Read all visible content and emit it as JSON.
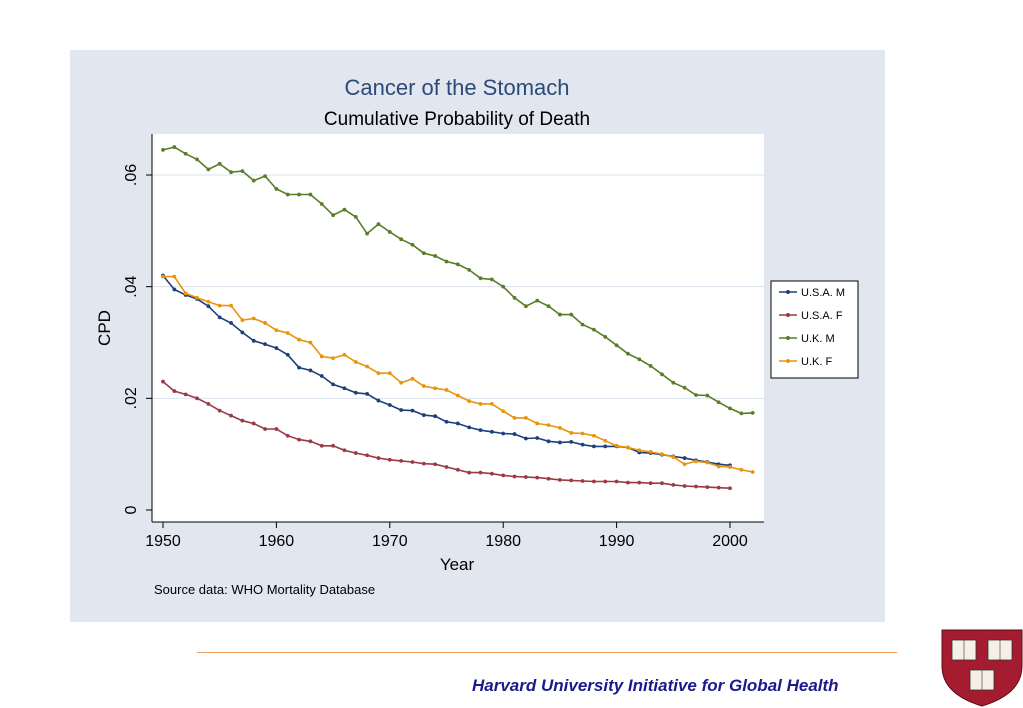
{
  "chart_data": {
    "type": "line",
    "title": "Cancer of the Stomach",
    "subtitle": "Cumulative Probability of Death",
    "xlabel": "Year",
    "ylabel": "CPD",
    "xlim": [
      1950,
      2002
    ],
    "ylim": [
      0,
      0.065
    ],
    "xticks": [
      1950,
      1960,
      1970,
      1980,
      1990,
      2000
    ],
    "xtick_labels": [
      "1950",
      "1960",
      "1970",
      "1980",
      "1990",
      "2000"
    ],
    "yticks": [
      0,
      0.02,
      0.04,
      0.06
    ],
    "ytick_labels": [
      "0",
      ".02",
      ".04",
      ".06"
    ],
    "grid": true,
    "legend_position": "right",
    "note": "Source data: WHO Mortality Database",
    "series": [
      {
        "name": "U.S.A. M",
        "color": "#1f3f7a",
        "x": [
          1950,
          1951,
          1952,
          1953,
          1954,
          1955,
          1956,
          1957,
          1958,
          1959,
          1960,
          1961,
          1962,
          1963,
          1964,
          1965,
          1966,
          1967,
          1968,
          1969,
          1970,
          1971,
          1972,
          1973,
          1974,
          1975,
          1976,
          1977,
          1978,
          1979,
          1980,
          1981,
          1982,
          1983,
          1984,
          1985,
          1986,
          1987,
          1988,
          1989,
          1990,
          1991,
          1992,
          1993,
          1994,
          1995,
          1996,
          1997,
          1998,
          1999,
          2000
        ],
        "y": [
          0.042,
          0.0395,
          0.0385,
          0.0378,
          0.0365,
          0.0345,
          0.0335,
          0.0318,
          0.0303,
          0.0297,
          0.029,
          0.0278,
          0.0255,
          0.025,
          0.024,
          0.0225,
          0.0218,
          0.021,
          0.0208,
          0.0196,
          0.0188,
          0.0179,
          0.0178,
          0.017,
          0.0168,
          0.0158,
          0.0155,
          0.0148,
          0.0143,
          0.014,
          0.0137,
          0.0136,
          0.0128,
          0.0129,
          0.0123,
          0.0121,
          0.0122,
          0.0117,
          0.0114,
          0.0114,
          0.0114,
          0.0112,
          0.0103,
          0.0102,
          0.0099,
          0.0096,
          0.0093,
          0.0089,
          0.0086,
          0.0082,
          0.008
        ]
      },
      {
        "name": "U.S.A. F",
        "color": "#9b3a46",
        "x": [
          1950,
          1951,
          1952,
          1953,
          1954,
          1955,
          1956,
          1957,
          1958,
          1959,
          1960,
          1961,
          1962,
          1963,
          1964,
          1965,
          1966,
          1967,
          1968,
          1969,
          1970,
          1971,
          1972,
          1973,
          1974,
          1975,
          1976,
          1977,
          1978,
          1979,
          1980,
          1981,
          1982,
          1983,
          1984,
          1985,
          1986,
          1987,
          1988,
          1989,
          1990,
          1991,
          1992,
          1993,
          1994,
          1995,
          1996,
          1997,
          1998,
          1999,
          2000
        ],
        "y": [
          0.023,
          0.0213,
          0.0207,
          0.02,
          0.019,
          0.0178,
          0.0169,
          0.016,
          0.0155,
          0.0145,
          0.0145,
          0.0133,
          0.0126,
          0.0123,
          0.0115,
          0.0115,
          0.0107,
          0.0102,
          0.0098,
          0.0093,
          0.009,
          0.0088,
          0.0086,
          0.0083,
          0.0082,
          0.0077,
          0.0072,
          0.0067,
          0.0067,
          0.0065,
          0.0062,
          0.006,
          0.0059,
          0.0058,
          0.0056,
          0.0054,
          0.0053,
          0.0052,
          0.0051,
          0.0051,
          0.0051,
          0.0049,
          0.0049,
          0.0048,
          0.0048,
          0.0045,
          0.0043,
          0.0042,
          0.0041,
          0.004,
          0.0039
        ]
      },
      {
        "name": "U.K. M",
        "color": "#5a7d2a",
        "x": [
          1950,
          1951,
          1952,
          1953,
          1954,
          1955,
          1956,
          1957,
          1958,
          1959,
          1960,
          1961,
          1962,
          1963,
          1964,
          1965,
          1966,
          1967,
          1968,
          1969,
          1970,
          1971,
          1972,
          1973,
          1974,
          1975,
          1976,
          1977,
          1978,
          1979,
          1980,
          1981,
          1982,
          1983,
          1984,
          1985,
          1986,
          1987,
          1988,
          1989,
          1990,
          1991,
          1992,
          1993,
          1994,
          1995,
          1996,
          1997,
          1998,
          1999,
          2000,
          2001,
          2002
        ],
        "y": [
          0.0645,
          0.065,
          0.0638,
          0.0628,
          0.061,
          0.062,
          0.0605,
          0.0607,
          0.059,
          0.0598,
          0.0575,
          0.0565,
          0.0565,
          0.0565,
          0.0548,
          0.0528,
          0.0538,
          0.0525,
          0.0495,
          0.0512,
          0.0498,
          0.0485,
          0.0475,
          0.046,
          0.0455,
          0.0445,
          0.044,
          0.043,
          0.0415,
          0.0413,
          0.04,
          0.038,
          0.0365,
          0.0375,
          0.0365,
          0.035,
          0.035,
          0.0332,
          0.0323,
          0.031,
          0.0295,
          0.028,
          0.027,
          0.0258,
          0.0243,
          0.0228,
          0.0219,
          0.0206,
          0.0205,
          0.0193,
          0.0182,
          0.0173,
          0.0174
        ]
      },
      {
        "name": "U.K. F",
        "color": "#e8940c",
        "x": [
          1950,
          1951,
          1952,
          1953,
          1954,
          1955,
          1956,
          1957,
          1958,
          1959,
          1960,
          1961,
          1962,
          1963,
          1964,
          1965,
          1966,
          1967,
          1968,
          1969,
          1970,
          1971,
          1972,
          1973,
          1974,
          1975,
          1976,
          1977,
          1978,
          1979,
          1980,
          1981,
          1982,
          1983,
          1984,
          1985,
          1986,
          1987,
          1988,
          1989,
          1990,
          1991,
          1992,
          1993,
          1994,
          1995,
          1996,
          1997,
          1998,
          1999,
          2000,
          2001,
          2002
        ],
        "y": [
          0.0418,
          0.0418,
          0.0388,
          0.038,
          0.0373,
          0.0366,
          0.0366,
          0.034,
          0.0343,
          0.0335,
          0.0322,
          0.0317,
          0.0305,
          0.03,
          0.0275,
          0.0272,
          0.0278,
          0.0265,
          0.0257,
          0.0245,
          0.0245,
          0.0228,
          0.0235,
          0.0222,
          0.0218,
          0.0215,
          0.0205,
          0.0195,
          0.019,
          0.019,
          0.0177,
          0.0165,
          0.0165,
          0.0155,
          0.0152,
          0.0147,
          0.0138,
          0.0137,
          0.0133,
          0.0124,
          0.0115,
          0.0112,
          0.0107,
          0.0104,
          0.01,
          0.0095,
          0.0082,
          0.0087,
          0.0085,
          0.0078,
          0.0077,
          0.0072,
          0.0068
        ]
      }
    ]
  },
  "footer": {
    "institution": "Harvard University Initiative for Global Health"
  },
  "logo": {
    "name": "harvard-shield",
    "motto": [
      "VE",
      "RI",
      "TAS"
    ],
    "color": "#a51c30"
  }
}
